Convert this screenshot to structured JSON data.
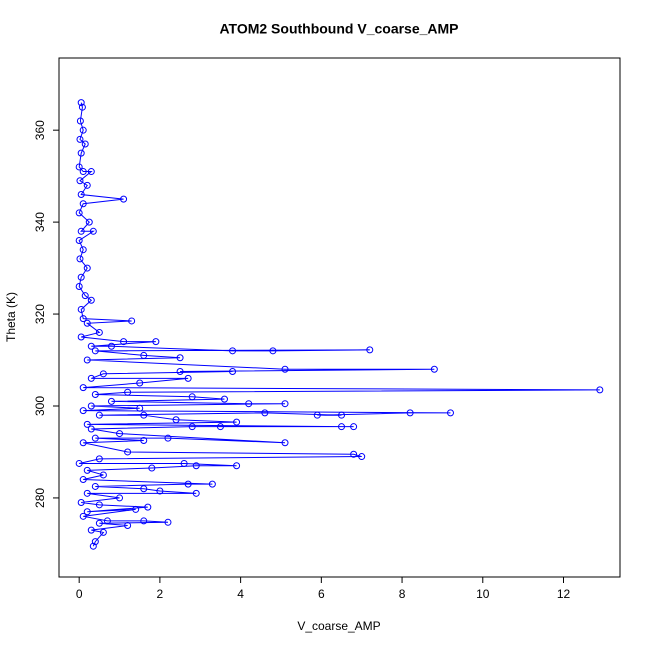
{
  "chart_data": {
    "type": "line",
    "markers": true,
    "title": "ATOM2 Southbound V_coarse_AMP",
    "xlabel": "V_coarse_AMP",
    "ylabel": "Theta (K)",
    "color": "#0000ff",
    "grid": false,
    "xlim": [
      -0.5,
      13.4
    ],
    "ylim": [
      262.8,
      375.7
    ],
    "xticks": [
      0,
      2,
      4,
      6,
      8,
      10,
      12
    ],
    "yticks": [
      280,
      300,
      320,
      340,
      360
    ],
    "x": [
      0.05,
      0.08,
      0.03,
      0.1,
      0.02,
      0.15,
      0.05,
      0.0,
      0.1,
      0.3,
      0.02,
      0.2,
      0.05,
      1.1,
      0.1,
      0.0,
      0.25,
      0.05,
      0.35,
      0.0,
      0.1,
      0.02,
      0.2,
      0.05,
      0.0,
      0.15,
      0.3,
      0.05,
      0.1,
      1.3,
      0.2,
      0.5,
      0.05,
      1.1,
      1.9,
      0.3,
      0.8,
      3.8,
      4.8,
      7.2,
      0.4,
      1.6,
      2.5,
      0.2,
      5.1,
      8.8,
      2.5,
      3.8,
      0.6,
      0.3,
      2.7,
      1.5,
      0.1,
      12.9,
      1.2,
      0.4,
      2.8,
      3.6,
      0.8,
      4.2,
      5.1,
      0.3,
      1.5,
      0.1,
      9.2,
      8.2,
      5.9,
      6.5,
      4.6,
      0.5,
      1.6,
      2.4,
      3.9,
      0.2,
      6.5,
      6.8,
      3.5,
      2.8,
      0.3,
      1.0,
      5.1,
      2.2,
      0.4,
      1.6,
      0.1,
      1.2,
      6.8,
      7.0,
      0.5,
      0.0,
      2.6,
      3.9,
      2.9,
      1.8,
      0.2,
      0.6,
      0.1,
      3.3,
      2.7,
      0.4,
      1.6,
      2.0,
      2.9,
      0.2,
      1.0,
      0.05,
      0.5,
      1.7,
      0.2,
      1.4,
      0.1,
      0.7,
      1.6,
      2.2,
      0.5,
      1.2,
      0.3,
      0.6,
      0.4,
      0.35
    ],
    "values": [
      366,
      365,
      362,
      360,
      358,
      357,
      355,
      352,
      351,
      351,
      349,
      348,
      346,
      345,
      344,
      342,
      340,
      338,
      338,
      336,
      334,
      332,
      330,
      328,
      326,
      324,
      323,
      321,
      319,
      318.5,
      318,
      316,
      315,
      314,
      314,
      313,
      313,
      312,
      312,
      312.2,
      312,
      311,
      310.5,
      310,
      308,
      308,
      307.5,
      307.5,
      307,
      306,
      306,
      305,
      304,
      303.5,
      303,
      302.5,
      302,
      301.5,
      301,
      300.5,
      300.5,
      300,
      299.5,
      299,
      298.5,
      298.5,
      298,
      298,
      298.5,
      298,
      298,
      297,
      296.5,
      296,
      295.5,
      295.5,
      295.5,
      295.5,
      295,
      294,
      292,
      293,
      293,
      292.5,
      292,
      290,
      289.5,
      289,
      288.5,
      287.5,
      287.5,
      287,
      287,
      286.5,
      286,
      285,
      284,
      283,
      283,
      282.5,
      282,
      281.5,
      281,
      281,
      280,
      279,
      278.5,
      278,
      277,
      277.5,
      276,
      275,
      275,
      274.7,
      274.5,
      274,
      273,
      272.5,
      270.5,
      269.5
    ]
  }
}
